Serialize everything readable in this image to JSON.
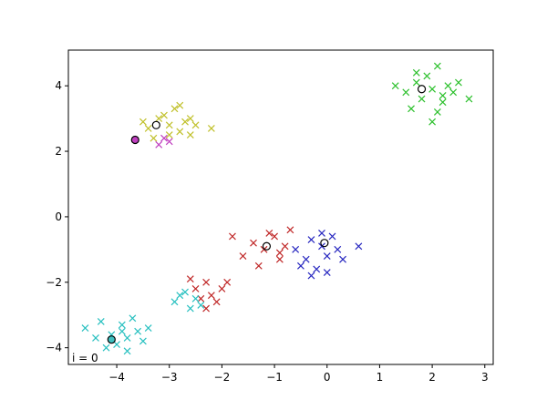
{
  "chart_data": {
    "type": "scatter",
    "annotation": "i = 0",
    "xlim": [
      -4.92,
      3.16
    ],
    "ylim": [
      -4.51,
      5.09
    ],
    "xticks": [
      {
        "value": -4,
        "label": "−4"
      },
      {
        "value": -3,
        "label": "−3"
      },
      {
        "value": -2,
        "label": "−2"
      },
      {
        "value": -1,
        "label": "−1"
      },
      0,
      1,
      2,
      3
    ],
    "yticks": [
      {
        "value": -4,
        "label": "−4"
      },
      {
        "value": -2,
        "label": "−2"
      },
      0,
      2,
      4
    ],
    "series": [
      {
        "color": "#2cc02c",
        "x": [
          1.5,
          1.7,
          1.8,
          1.9,
          2.0,
          2.1,
          2.2,
          2.3,
          2.4,
          2.5,
          1.6,
          2.0,
          2.2,
          1.3,
          2.7,
          1.7,
          2.1
        ],
        "values": [
          3.8,
          4.1,
          3.6,
          4.3,
          3.9,
          4.6,
          3.7,
          4.0,
          3.8,
          4.1,
          3.3,
          2.9,
          3.5,
          4.0,
          3.6,
          4.4,
          3.2
        ]
      },
      {
        "color": "#c0c02a",
        "x": [
          -3.4,
          -3.2,
          -3.0,
          -2.9,
          -2.8,
          -2.7,
          -2.6,
          -3.3,
          -3.1,
          -2.5,
          -2.2,
          -3.0,
          -2.8,
          -3.5,
          -2.6
        ],
        "values": [
          2.7,
          3.0,
          2.8,
          3.3,
          2.6,
          2.9,
          2.5,
          2.4,
          3.1,
          2.8,
          2.7,
          2.5,
          3.4,
          2.9,
          3.0
        ]
      },
      {
        "color": "#c040c0",
        "x": [
          -3.2,
          -3.1,
          -3.0
        ],
        "values": [
          2.2,
          2.4,
          2.3
        ]
      },
      {
        "color": "#c02828",
        "x": [
          -1.6,
          -1.4,
          -1.2,
          -1.0,
          -0.9,
          -0.8,
          -0.7,
          -1.3,
          -1.1,
          -0.9,
          -1.8,
          -2.5,
          -2.4,
          -2.3,
          -2.2,
          -2.1,
          -2.0,
          -2.6,
          -2.3,
          -1.9
        ],
        "values": [
          -1.2,
          -0.8,
          -1.0,
          -0.6,
          -1.3,
          -0.9,
          -0.4,
          -1.5,
          -0.5,
          -1.1,
          -0.6,
          -2.2,
          -2.5,
          -2.0,
          -2.4,
          -2.6,
          -2.2,
          -1.9,
          -2.8,
          -2.0
        ]
      },
      {
        "color": "#2828c0",
        "x": [
          -0.6,
          -0.4,
          -0.3,
          -0.2,
          -0.1,
          0.0,
          0.1,
          0.2,
          -0.3,
          -0.1,
          0.3,
          0.6,
          -0.5,
          0.0
        ],
        "values": [
          -1.0,
          -1.3,
          -0.7,
          -1.6,
          -0.9,
          -1.2,
          -0.6,
          -1.0,
          -1.8,
          -0.5,
          -1.3,
          -0.9,
          -1.5,
          -1.7
        ]
      },
      {
        "color": "#28c0c0",
        "x": [
          -4.6,
          -4.3,
          -4.1,
          -4.0,
          -3.9,
          -3.8,
          -3.7,
          -3.6,
          -3.5,
          -4.2,
          -3.9,
          -3.4,
          -2.9,
          -2.7,
          -2.6,
          -2.5,
          -2.8,
          -4.4,
          -3.8,
          -2.4
        ],
        "values": [
          -3.4,
          -3.2,
          -3.6,
          -3.9,
          -3.3,
          -3.7,
          -3.1,
          -3.5,
          -3.8,
          -4.0,
          -3.5,
          -3.4,
          -2.6,
          -2.3,
          -2.8,
          -2.5,
          -2.4,
          -3.7,
          -4.1,
          -2.7
        ]
      }
    ],
    "centroids": {
      "x": [
        1.8,
        -3.25,
        -3.65,
        -1.15,
        -0.05,
        -4.1
      ],
      "values": [
        3.9,
        2.8,
        2.35,
        -0.9,
        -0.8,
        -3.75
      ],
      "facecolors": [
        "none",
        "none",
        "#bf3fbf",
        "none",
        "none",
        "#3fbfbf"
      ],
      "edgecolor": "#000000"
    }
  }
}
